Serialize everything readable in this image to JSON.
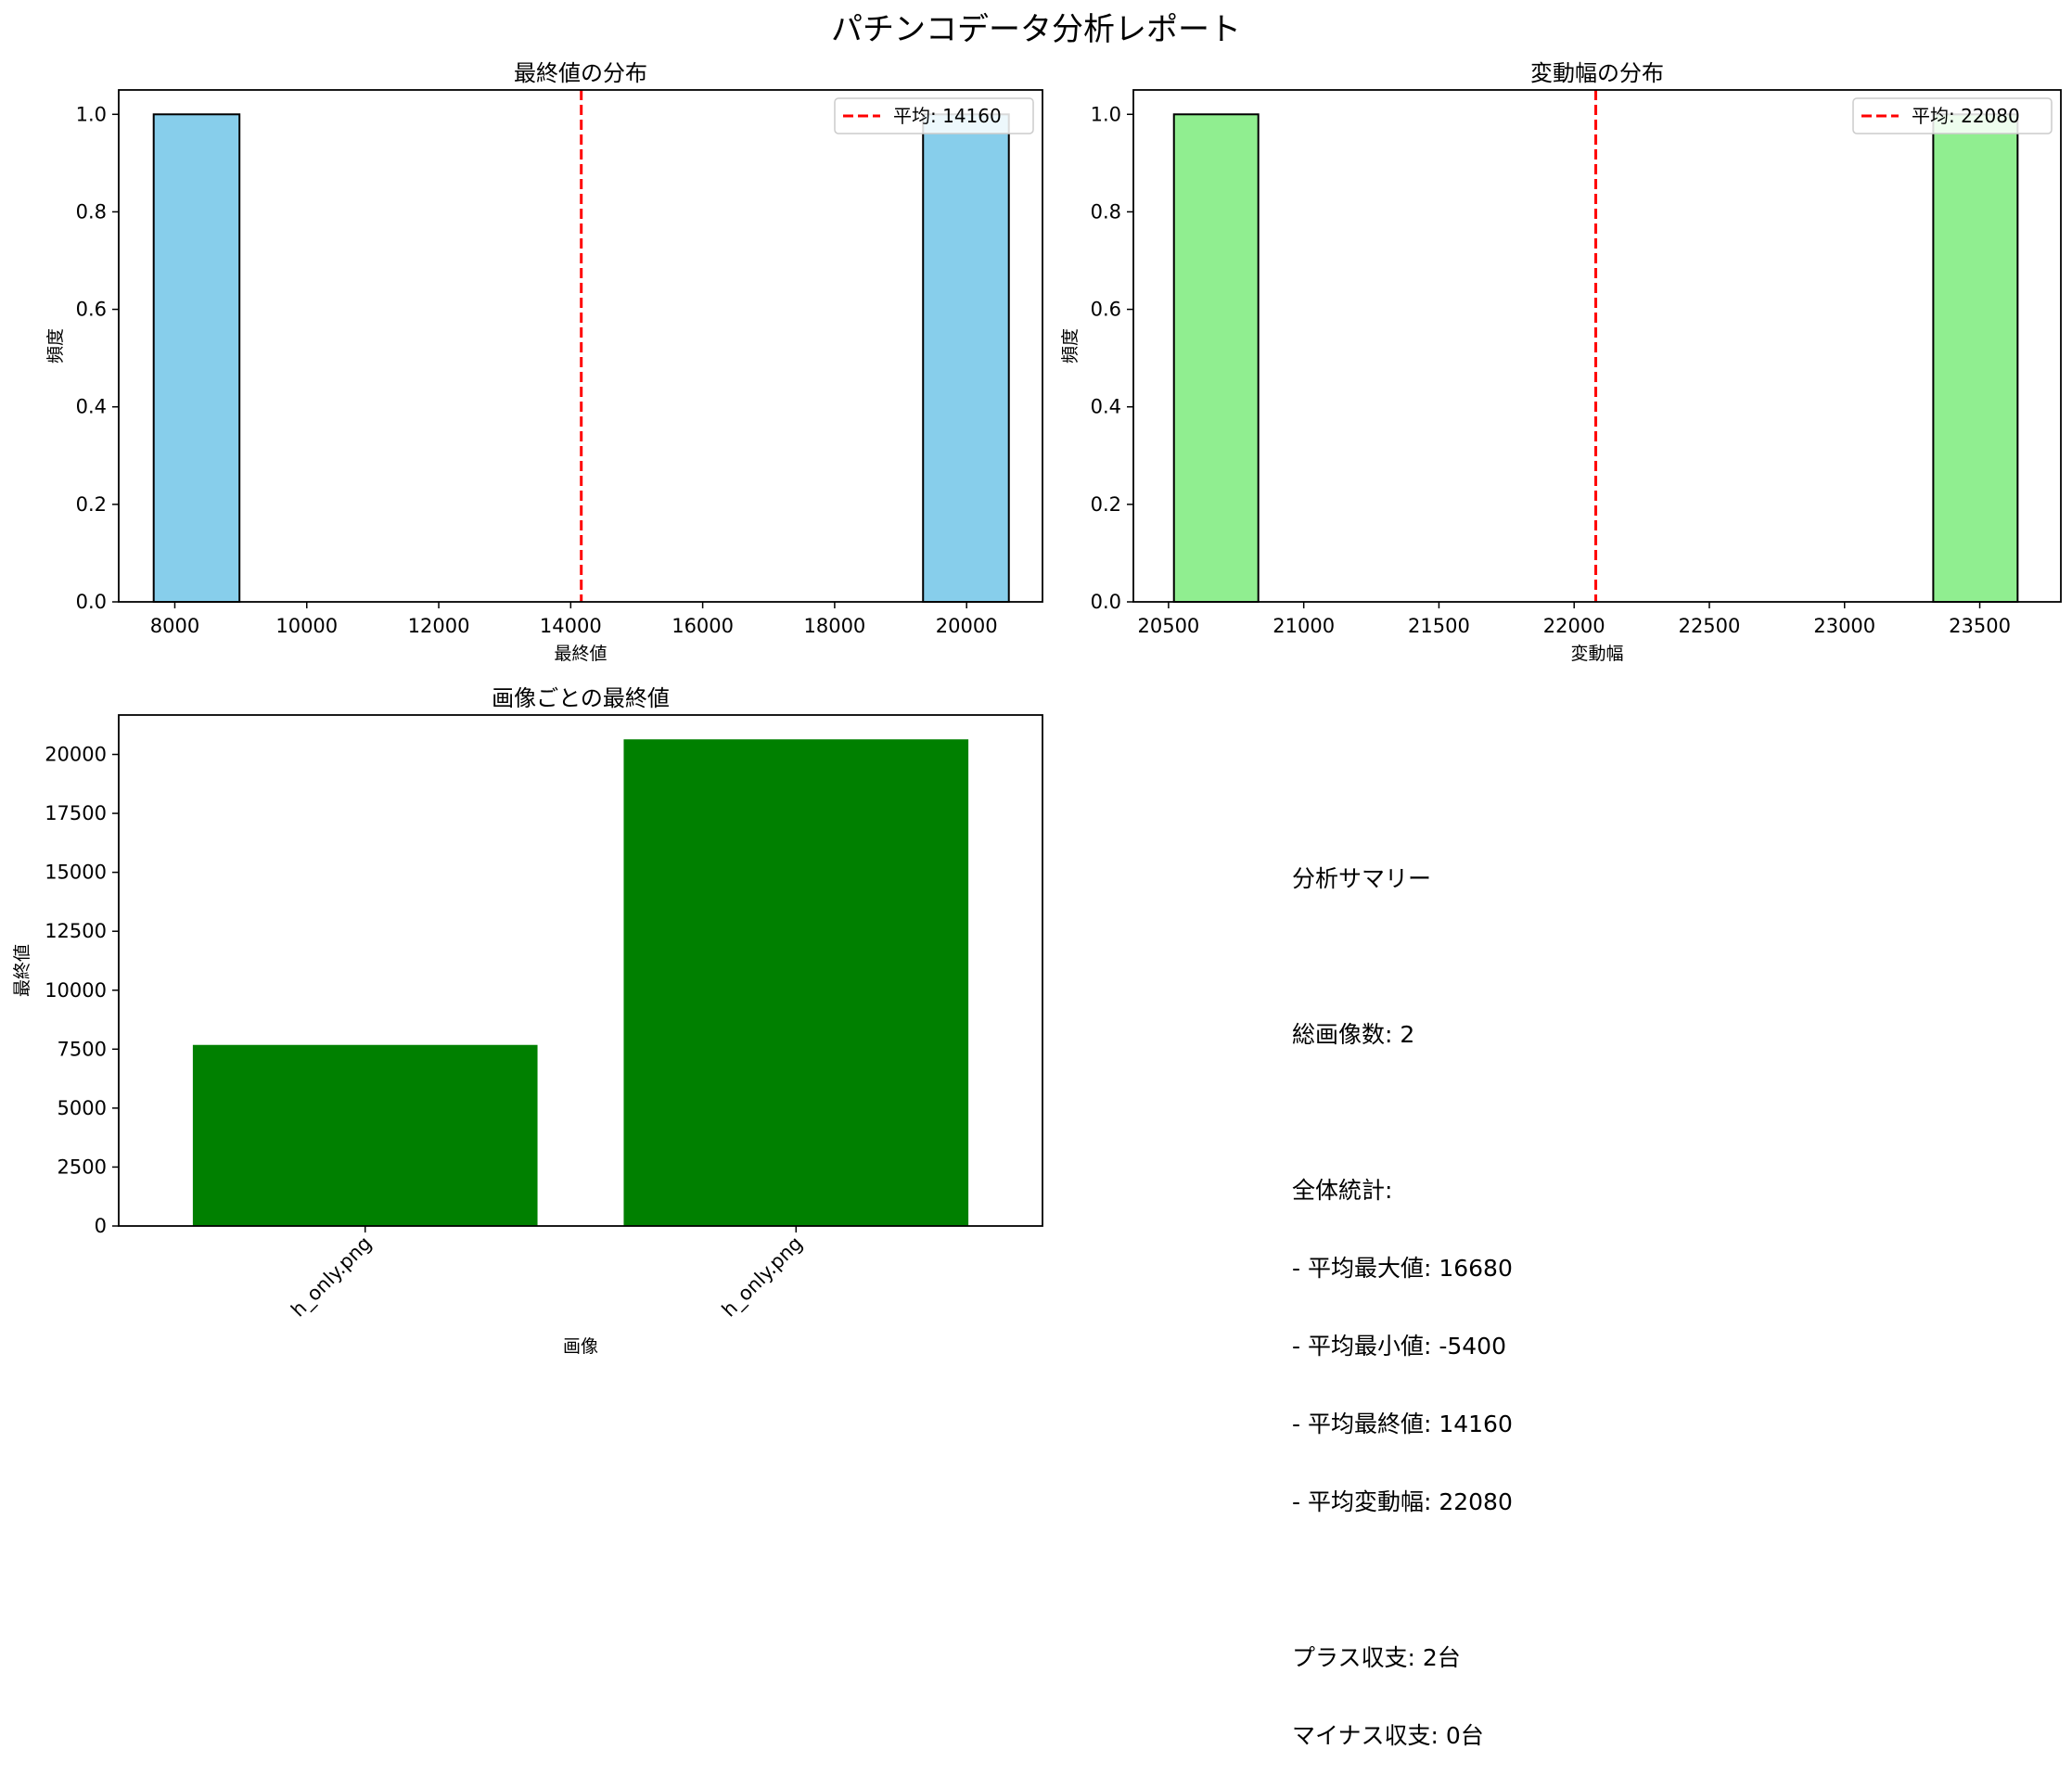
{
  "figure_title": "パチンコデータ分析レポート",
  "chart_data": [
    {
      "type": "bar",
      "subtype": "histogram",
      "title": "最終値の分布",
      "xlabel": "最終値",
      "ylabel": "頻度",
      "xlim": [
        7150,
        21150
      ],
      "ylim": [
        0,
        1.05
      ],
      "xticks": [
        8000,
        10000,
        12000,
        14000,
        16000,
        18000,
        20000
      ],
      "yticks": [
        0.0,
        0.2,
        0.4,
        0.6,
        0.8,
        1.0
      ],
      "bars": [
        {
          "x0": 7680,
          "x1": 8980,
          "value": 1
        },
        {
          "x0": 19340,
          "x1": 20640,
          "value": 1
        }
      ],
      "bar_color": "#87CEEB",
      "bar_edge": "#000000",
      "mean_line": {
        "value": 14160,
        "label": "平均: 14160",
        "color": "#ff0000"
      },
      "legend": "top-right"
    },
    {
      "type": "bar",
      "subtype": "histogram",
      "title": "変動幅の分布",
      "xlabel": "変動幅",
      "ylabel": "頻度",
      "xlim": [
        20370,
        23800
      ],
      "ylim": [
        0,
        1.05
      ],
      "xticks": [
        20500,
        21000,
        21500,
        22000,
        22500,
        23000,
        23500
      ],
      "yticks": [
        0.0,
        0.2,
        0.4,
        0.6,
        0.8,
        1.0
      ],
      "bars": [
        {
          "x0": 20520,
          "x1": 20832,
          "value": 1
        },
        {
          "x0": 23328,
          "x1": 23640,
          "value": 1
        }
      ],
      "bar_color": "#90EE90",
      "bar_edge": "#000000",
      "mean_line": {
        "value": 22080,
        "label": "平均: 22080",
        "color": "#ff0000"
      },
      "legend": "top-right"
    },
    {
      "type": "bar",
      "title": "画像ごとの最終値",
      "xlabel": "画像",
      "ylabel": "最終値",
      "categories": [
        "h_only.png",
        "h_only.png"
      ],
      "values": [
        7680,
        20640
      ],
      "ylim": [
        0,
        21672
      ],
      "yticks": [
        0,
        2500,
        5000,
        7500,
        10000,
        12500,
        15000,
        17500,
        20000
      ],
      "bar_color": "#008000"
    }
  ],
  "summary": {
    "title": "分析サマリー",
    "total": "総画像数: 2",
    "stats_header": "全体統計:",
    "stats": [
      "- 平均最大値: 16680",
      "- 平均最小値: -5400",
      "- 平均最終値: 14160",
      "- 平均変動幅: 22080"
    ],
    "plus": "プラス収支: 2台",
    "minus": "マイナス収支: 0台"
  }
}
